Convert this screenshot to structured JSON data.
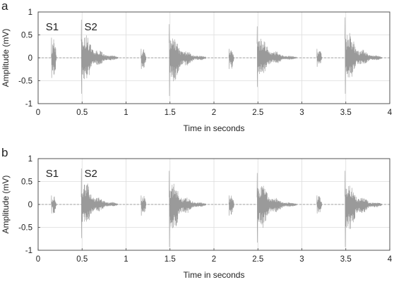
{
  "chart_data": [
    {
      "type": "line",
      "panel_label": "a",
      "xlabel": "Time in seconds",
      "ylabel": "Amplitude (mV)",
      "xlim": [
        0,
        4
      ],
      "ylim": [
        -1,
        1
      ],
      "x_ticks": [
        "0",
        "0.5",
        "1",
        "1.5",
        "2",
        "2.5",
        "3",
        "3.5",
        "4"
      ],
      "y_ticks": [
        "-1",
        "-0.5",
        "0",
        "0.5",
        "1"
      ],
      "grid": true,
      "annotations": [
        {
          "text": "S1",
          "x": 0.16,
          "y": 0.6
        },
        {
          "text": "S2",
          "x": 0.6,
          "y": 0.6
        }
      ],
      "events": [
        {
          "sound": "S1",
          "t": 0.15,
          "dur": 0.06,
          "max": 0.45,
          "min": -0.45
        },
        {
          "sound": "S2",
          "t": 0.49,
          "dur": 0.42,
          "max": 0.85,
          "min": -0.8
        },
        {
          "sound": "S1",
          "t": 1.17,
          "dur": 0.06,
          "max": 0.2,
          "min": -0.25
        },
        {
          "sound": "S2",
          "t": 1.49,
          "dur": 0.42,
          "max": 0.75,
          "min": -0.85
        },
        {
          "sound": "S1",
          "t": 2.17,
          "dur": 0.06,
          "max": 0.2,
          "min": -0.25
        },
        {
          "sound": "S2",
          "t": 2.49,
          "dur": 0.45,
          "max": 0.7,
          "min": -0.65
        },
        {
          "sound": "S1",
          "t": 3.17,
          "dur": 0.06,
          "max": 0.2,
          "min": -0.2
        },
        {
          "sound": "S2",
          "t": 3.49,
          "dur": 0.42,
          "max": 0.9,
          "min": -0.8
        }
      ]
    },
    {
      "type": "line",
      "panel_label": "b",
      "xlabel": "Time in seconds",
      "ylabel": "Amplitude (mV)",
      "xlim": [
        0,
        4
      ],
      "ylim": [
        -1,
        1
      ],
      "x_ticks": [
        "0",
        "0.5",
        "1",
        "1.5",
        "2",
        "2.5",
        "3",
        "3.5",
        "4"
      ],
      "y_ticks": [
        "-1",
        "-0.5",
        "0",
        "0.5",
        "1"
      ],
      "grid": true,
      "annotations": [
        {
          "text": "S1",
          "x": 0.16,
          "y": 0.6
        },
        {
          "text": "S2",
          "x": 0.6,
          "y": 0.6
        }
      ],
      "events": [
        {
          "sound": "S1",
          "t": 0.15,
          "dur": 0.06,
          "max": 0.2,
          "min": -0.2
        },
        {
          "sound": "S2",
          "t": 0.49,
          "dur": 0.42,
          "max": 0.8,
          "min": -0.75
        },
        {
          "sound": "S1",
          "t": 1.17,
          "dur": 0.06,
          "max": 0.2,
          "min": -0.25
        },
        {
          "sound": "S2",
          "t": 1.49,
          "dur": 0.42,
          "max": 0.75,
          "min": -0.95
        },
        {
          "sound": "S1",
          "t": 2.17,
          "dur": 0.06,
          "max": 0.2,
          "min": -0.25
        },
        {
          "sound": "S2",
          "t": 2.49,
          "dur": 0.45,
          "max": 0.7,
          "min": -0.85
        },
        {
          "sound": "S1",
          "t": 3.17,
          "dur": 0.06,
          "max": 0.2,
          "min": -0.2
        },
        {
          "sound": "S2",
          "t": 3.49,
          "dur": 0.42,
          "max": 0.75,
          "min": -0.95
        }
      ]
    }
  ]
}
